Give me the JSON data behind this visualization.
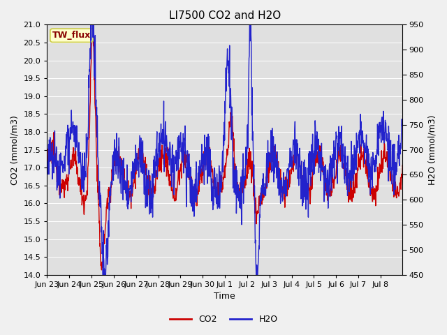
{
  "title": "LI7500 CO2 and H2O",
  "xlabel": "Time",
  "ylabel_left": "CO2 (mmol/m3)",
  "ylabel_right": "H2O (mmol/m3)",
  "co2_ylim": [
    14.0,
    21.0
  ],
  "h2o_ylim": [
    450,
    950
  ],
  "co2_yticks": [
    14.0,
    14.5,
    15.0,
    15.5,
    16.0,
    16.5,
    17.0,
    17.5,
    18.0,
    18.5,
    19.0,
    19.5,
    20.0,
    20.5,
    21.0
  ],
  "h2o_yticks": [
    450,
    500,
    550,
    600,
    650,
    700,
    750,
    800,
    850,
    900,
    950
  ],
  "xtick_labels": [
    "Jun 23",
    "Jun 24",
    "Jun 25",
    "Jun 26",
    "Jun 27",
    "Jun 28",
    "Jun 29",
    "Jun 30",
    "Jul 1",
    "Jul 2",
    "Jul 3",
    "Jul 4",
    "Jul 5",
    "Jul 6",
    "Jul 7",
    "Jul 8"
  ],
  "co2_color": "#cc0000",
  "h2o_color": "#2222cc",
  "fig_bg_color": "#f0f0f0",
  "plot_bg_color": "#e0e0e0",
  "grid_color": "#ffffff",
  "text_box_facecolor": "#ffffcc",
  "text_box_edgecolor": "#cccc44",
  "label_text": "TW_flux",
  "label_color": "#880000",
  "legend_co2": "CO2",
  "legend_h2o": "H2O",
  "title_fontsize": 11,
  "axis_label_fontsize": 9,
  "tick_fontsize": 8,
  "legend_fontsize": 9,
  "linewidth": 1.0
}
